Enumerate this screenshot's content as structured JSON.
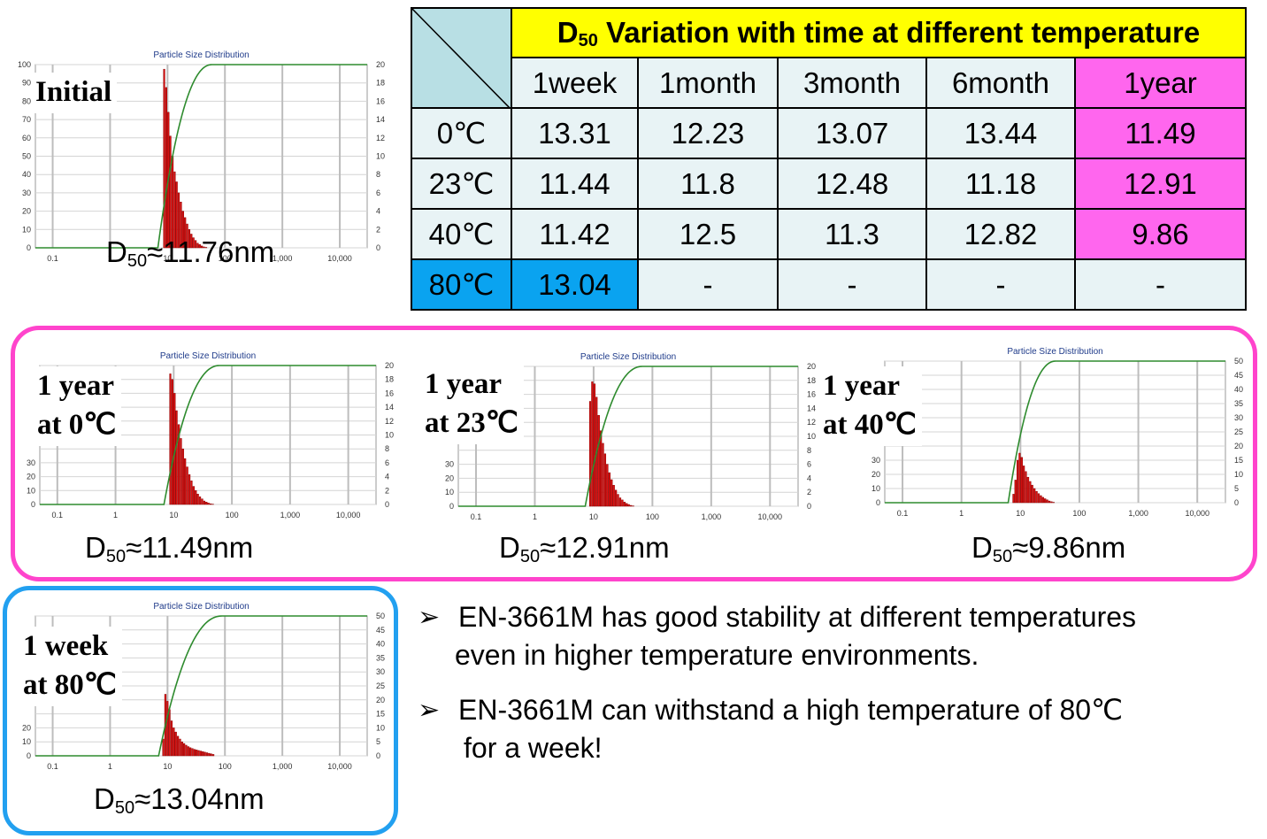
{
  "chart_data": [
    {
      "type": "bar",
      "title": "Particle Size Distribution",
      "series_label": "Initial",
      "d50": "11.76",
      "left_ticks": [
        "100",
        "90",
        "80",
        "70",
        "60",
        "50",
        "40",
        "30",
        "20",
        "10",
        "0"
      ],
      "right_ticks": [
        "20",
        "18",
        "16",
        "14",
        "12",
        "10",
        "8",
        "6",
        "4",
        "2",
        "0"
      ],
      "x_ticks": [
        "0.1",
        "1",
        "10",
        "100",
        "1,000",
        "10,000"
      ],
      "x_range": [
        0.05,
        30000
      ],
      "y_right_range": [
        0,
        20
      ],
      "bins_x": [
        8.5,
        9.2,
        10,
        10.9,
        11.8,
        12.9,
        14,
        15.2,
        16.5,
        18,
        19.6,
        21.3,
        23.2,
        25.2,
        27.4,
        29.8,
        32.5,
        35.3,
        38.4,
        41.8,
        45.5
      ],
      "bins_y": [
        19.5,
        17.5,
        14.8,
        12.2,
        10,
        8.3,
        7.2,
        6,
        5,
        4,
        3.3,
        2.6,
        2,
        1.5,
        1.1,
        0.8,
        0.5,
        0.35,
        0.2,
        0.1,
        0.05
      ],
      "cumulative_range": [
        6.8,
        60
      ]
    },
    {
      "type": "bar",
      "title": "Particle Size Distribution",
      "series_label": "1 year at 0℃",
      "d50": "11.49",
      "left_ticks": [
        "30",
        "20",
        "10",
        "0"
      ],
      "right_ticks": [
        "20",
        "18",
        "16",
        "14",
        "12",
        "10",
        "8",
        "6",
        "4",
        "2",
        "0"
      ],
      "x_ticks": [
        "0.1",
        "1",
        "10",
        "100",
        "1,000",
        "10,000"
      ],
      "x_range": [
        0.05,
        30000
      ],
      "y_right_range": [
        0,
        20
      ],
      "bins_x": [
        8.5,
        9.2,
        10,
        10.9,
        11.8,
        12.9,
        14,
        15.2,
        16.5,
        18,
        19.6,
        21.3,
        23.2,
        25.2,
        27.4,
        29.8,
        32.5,
        35.3,
        38.4,
        41.8,
        45.5
      ],
      "bins_y": [
        18.8,
        18,
        16,
        13.5,
        11.5,
        9.5,
        8,
        6.6,
        5.4,
        4.3,
        3.4,
        2.6,
        2,
        1.5,
        1.1,
        0.8,
        0.5,
        0.35,
        0.2,
        0.1,
        0.05
      ],
      "cumulative_range": [
        6.8,
        62
      ]
    },
    {
      "type": "bar",
      "title": "Particle Size Distribution",
      "series_label": "1 year at 23℃",
      "d50": "12.91",
      "left_ticks": [
        "30",
        "20",
        "10",
        "0"
      ],
      "right_ticks": [
        "20",
        "18",
        "16",
        "14",
        "12",
        "10",
        "8",
        "6",
        "4",
        "2",
        "0"
      ],
      "x_ticks": [
        "0.1",
        "1",
        "10",
        "100",
        "1,000",
        "10,000"
      ],
      "x_range": [
        0.05,
        30000
      ],
      "y_right_range": [
        0,
        20
      ],
      "bins_x": [
        8.5,
        9.2,
        10,
        10.9,
        11.8,
        12.9,
        14,
        15.2,
        16.5,
        18,
        19.6,
        21.3,
        23.2,
        25.2,
        27.4,
        29.8,
        32.5,
        35.3,
        38.4,
        41.8,
        45.5
      ],
      "bins_y": [
        15,
        17.8,
        17.5,
        15.6,
        13,
        10.8,
        9,
        7.5,
        6,
        4.8,
        3.8,
        3,
        2.3,
        1.7,
        1.2,
        0.9,
        0.6,
        0.4,
        0.25,
        0.12,
        0.05
      ],
      "cumulative_range": [
        7.2,
        68
      ]
    },
    {
      "type": "bar",
      "title": "Particle Size Distribution",
      "series_label": "1 year at 40℃",
      "d50": "9.86",
      "left_ticks": [
        "30",
        "20",
        "10",
        "0"
      ],
      "right_ticks": [
        "50",
        "45",
        "40",
        "35",
        "30",
        "25",
        "20",
        "15",
        "10",
        "5",
        "0"
      ],
      "x_ticks": [
        "0.1",
        "1",
        "10",
        "100",
        "1,000",
        "10,000"
      ],
      "x_range": [
        0.05,
        30000
      ],
      "y_right_range": [
        0,
        50
      ],
      "bins_x": [
        7.4,
        8,
        8.7,
        9.4,
        10.2,
        11.1,
        12,
        13,
        14.2,
        15.4,
        16.7,
        18.2,
        19.8,
        21.5,
        23.4,
        25.4,
        27.6,
        30,
        32.6,
        35.4
      ],
      "bins_y": [
        3,
        8,
        15,
        17.5,
        16,
        13,
        11,
        9,
        7.5,
        6.2,
        5,
        4,
        3.2,
        2.5,
        1.9,
        1.4,
        1,
        0.6,
        0.35,
        0.15
      ],
      "cumulative_range": [
        6.2,
        40
      ]
    },
    {
      "type": "bar",
      "title": "Particle Size Distribution",
      "series_label": "1 week at 80℃",
      "d50": "13.04",
      "left_ticks": [
        "20",
        "10",
        "0"
      ],
      "right_ticks": [
        "50",
        "45",
        "40",
        "35",
        "30",
        "25",
        "20",
        "15",
        "10",
        "5",
        "0"
      ],
      "x_ticks": [
        "0.1",
        "1",
        "10",
        "100",
        "1,000",
        "10,000"
      ],
      "x_range": [
        0.05,
        30000
      ],
      "y_right_range": [
        0,
        50
      ],
      "bins_x": [
        8.2,
        8.9,
        9.7,
        10.5,
        11.4,
        12.4,
        13.5,
        14.7,
        16,
        17.4,
        18.9,
        20.5,
        22.3,
        24.2,
        26.3,
        28.6,
        31.1,
        33.8,
        36.7,
        39.9,
        43.4,
        47.2,
        51.3,
        55.8,
        60.7
      ],
      "bins_y": [
        6,
        22,
        19.5,
        16.5,
        12.5,
        10,
        8.5,
        7,
        6,
        5,
        4.4,
        3.8,
        3.3,
        2.9,
        2.6,
        2.3,
        2.1,
        1.9,
        1.7,
        1.5,
        1.3,
        1.1,
        0.9,
        0.7,
        0.5
      ],
      "cumulative_range": [
        7,
        90
      ]
    }
  ],
  "labels": {
    "initial": "Initial",
    "y0_l1": "1 year",
    "y0_l2": "at 0℃",
    "y23_l1": "1 year",
    "y23_l2": "at 23℃",
    "y40_l1": "1 year",
    "y40_l2": "at 40℃",
    "w80_l1": "1 week",
    "w80_l2": "at 80℃"
  },
  "d50_text": {
    "prefix": "D",
    "sub": "50",
    "initial": "≈11.76nm",
    "y0": "≈11.49nm",
    "y23": "≈12.91nm",
    "y40": "≈9.86nm",
    "w80": "≈13.04nm"
  },
  "table": {
    "title_prefix": "D",
    "title_sub": "50",
    "title_rest": " Variation with time at different temperature",
    "columns": [
      "1week",
      "1month",
      "3month",
      "6month",
      "1year"
    ],
    "rows": [
      {
        "temp": "0℃",
        "values": [
          "13.31",
          "12.23",
          "13.07",
          "13.44",
          "11.49"
        ]
      },
      {
        "temp": "23℃",
        "values": [
          "11.44",
          "11.8",
          "12.48",
          "11.18",
          "12.91"
        ]
      },
      {
        "temp": "40℃",
        "values": [
          "11.42",
          "12.5",
          "11.3",
          "12.82",
          "9.86"
        ]
      },
      {
        "temp": "80℃",
        "values": [
          "13.04",
          "-",
          "-",
          "-",
          "-"
        ]
      }
    ]
  },
  "bullets": {
    "arrow": "➢",
    "b1_line1": "EN-3661M has good stability at different temperatures",
    "b1_line2": "even in higher temperature environments.",
    "b2_line1": "EN-3661M can withstand a high temperature of 80℃",
    "b2_line2": "for a week!"
  },
  "colors": {
    "bar": "#dd1111",
    "curve": "#2e8b2e",
    "pink_frame": "#ff44cc",
    "blue_frame": "#22a0f0",
    "table_pink": "#ff66ee",
    "table_blue": "#0aa3f0",
    "table_yellow": "#ffff00"
  }
}
